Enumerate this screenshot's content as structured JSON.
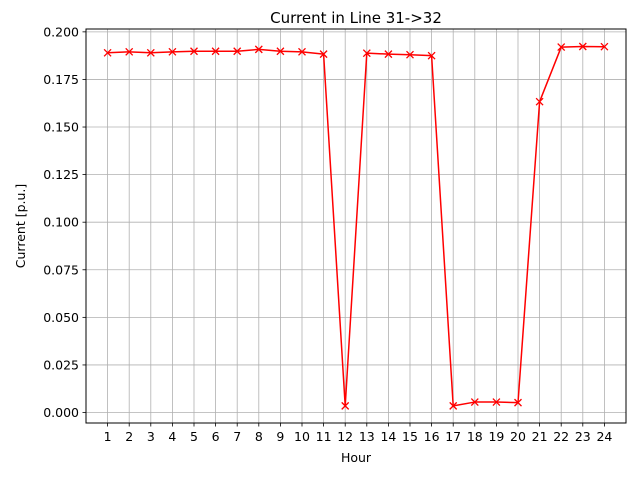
{
  "chart_data": {
    "type": "line",
    "title": "Current in Line 31->32",
    "xlabel": "Hour",
    "ylabel": "Current  [p.u.]",
    "x": [
      1,
      2,
      3,
      4,
      5,
      6,
      7,
      8,
      9,
      10,
      11,
      12,
      13,
      14,
      15,
      16,
      17,
      18,
      19,
      20,
      21,
      22,
      23,
      24
    ],
    "xticks": [
      "1",
      "2",
      "3",
      "4",
      "5",
      "6",
      "7",
      "8",
      "9",
      "10",
      "11",
      "12",
      "13",
      "14",
      "15",
      "16",
      "17",
      "18",
      "19",
      "20",
      "21",
      "22",
      "23",
      "24"
    ],
    "yticks": [
      "0.000",
      "0.025",
      "0.050",
      "0.075",
      "0.100",
      "0.125",
      "0.150",
      "0.175",
      "0.200"
    ],
    "ylim": [
      -0.0055,
      0.2015
    ],
    "xlim": [
      0,
      25
    ],
    "grid": true,
    "series": [
      {
        "color": "#ff0000",
        "marker": "x",
        "values": [
          0.189,
          0.1895,
          0.189,
          0.1895,
          0.1898,
          0.1898,
          0.1898,
          0.1908,
          0.1898,
          0.1895,
          0.1883,
          0.0035,
          0.1888,
          0.1883,
          0.188,
          0.1875,
          0.0035,
          0.0055,
          0.0055,
          0.0052,
          0.1633,
          0.192,
          0.1923,
          0.1922
        ]
      }
    ]
  }
}
